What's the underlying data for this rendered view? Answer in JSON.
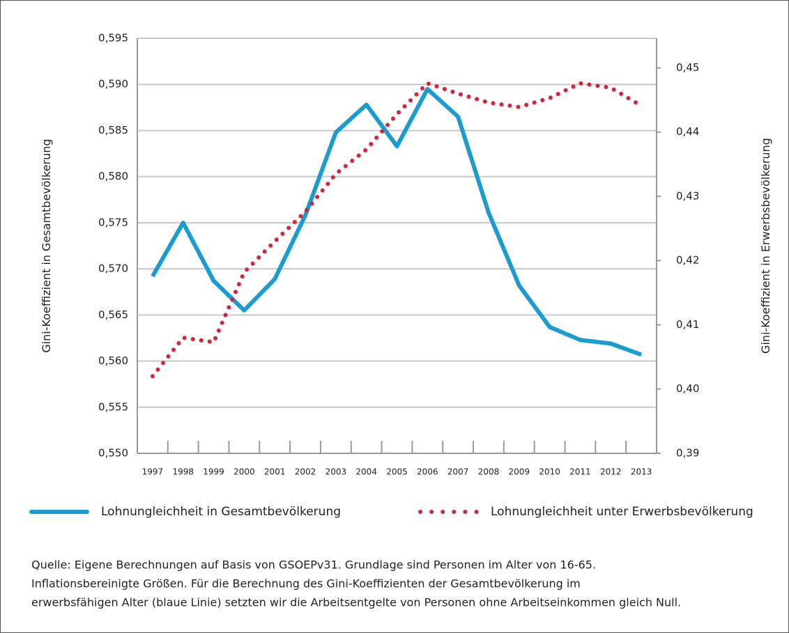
{
  "chart_data": {
    "type": "line",
    "y_label": "Gini-Koeffizient in Gesamtbevölkerung",
    "y2_label": "Gini-Koeffizient in Erwerbsbevölkerung",
    "categories": [
      "1997",
      "1998",
      "1999",
      "2000",
      "2001",
      "2002",
      "2003",
      "2004",
      "2005",
      "2006",
      "2007",
      "2008",
      "2009",
      "2010",
      "2011",
      "2012",
      "2013"
    ],
    "series": [
      {
        "name": "Lohnungleichheit in Gesamtbevölkerung",
        "color": "#1a9bd1",
        "style": "solid",
        "values": [
          0.5692,
          0.575,
          0.5687,
          0.5655,
          0.5689,
          0.5758,
          0.5848,
          0.5878,
          0.5833,
          0.5895,
          0.5865,
          0.5761,
          0.5682,
          0.5637,
          0.5623,
          0.5619,
          0.5607
        ]
      },
      {
        "name": "Lohnungleichheit unter Erwerbsbevölkerung",
        "color": "#d3263a",
        "style": "dotted",
        "axis": "y2",
        "values": [
          0.402,
          0.408,
          0.4073,
          0.4182,
          0.423,
          0.4276,
          0.4335,
          0.4373,
          0.4428,
          0.4476,
          0.446,
          0.4446,
          0.4439,
          0.4453,
          0.4476,
          0.4469,
          0.4441
        ]
      }
    ],
    "ylim": [
      0.55,
      0.595
    ],
    "yticks": [
      {
        "value": 0.55,
        "label": "0,550"
      },
      {
        "value": 0.555,
        "label": "0,555"
      },
      {
        "value": 0.56,
        "label": "0,560"
      },
      {
        "value": 0.565,
        "label": "0,565"
      },
      {
        "value": 0.57,
        "label": "0,570"
      },
      {
        "value": 0.575,
        "label": "0,575"
      },
      {
        "value": 0.58,
        "label": "0,580"
      },
      {
        "value": 0.585,
        "label": "0,585"
      },
      {
        "value": 0.59,
        "label": "0,590"
      },
      {
        "value": 0.595,
        "label": "0,595"
      }
    ],
    "y2lim": [
      0.39,
      0.4546
    ],
    "y2ticks": [
      {
        "value": 0.39,
        "label": "0,39"
      },
      {
        "value": 0.4,
        "label": "0,40"
      },
      {
        "value": 0.41,
        "label": "0,41"
      },
      {
        "value": 0.42,
        "label": "0,42"
      },
      {
        "value": 0.43,
        "label": "0,43"
      },
      {
        "value": 0.44,
        "label": "0,44"
      },
      {
        "value": 0.45,
        "label": "0,45"
      }
    ],
    "grid": true,
    "source_lines": [
      "Quelle: Eigene Berechnungen auf Basis von GSOEPv31. Grundlage sind Personen im Alter von 16-65.",
      "Inflationsbereinigte Größen. Für die Berechnung des Gini-Koeffizienten der Gesamtbevölkerung im",
      "erwerbsfähigen Alter (blaue Linie) setzten wir die Arbeitsentgelte von Personen ohne Arbeitseinkommen gleich Null."
    ]
  }
}
